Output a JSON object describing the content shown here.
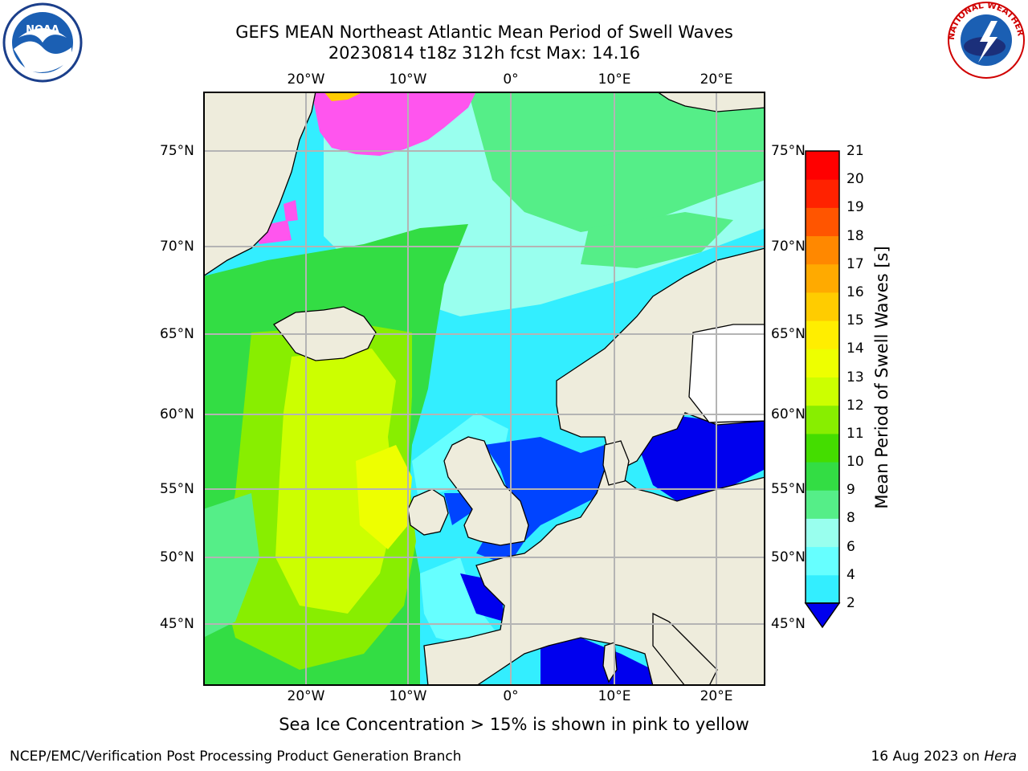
{
  "figure": {
    "title_line1": "GEFS MEAN Northeast Atlantic Mean Period of Swell Waves",
    "title_line2": "20230814 t18z 312h fcst   Max: 14.16",
    "sea_ice_note": "Sea Ice Concentration > 15% is shown in pink to yellow",
    "footer_left": "NCEP/EMC/Verification Post Processing Product Generation Branch",
    "footer_date": "16 Aug 2023 on ",
    "footer_machine": "Hera"
  },
  "map": {
    "lon_ticks": [
      "20°W",
      "10°W",
      "0°",
      "10°E",
      "20°E"
    ],
    "lat_ticks": [
      "75°N",
      "70°N",
      "65°N",
      "60°N",
      "55°N",
      "50°N",
      "45°N"
    ],
    "land_color": "#eeecdc",
    "grid_color": "#b4b4b4",
    "coast_color": "#000000"
  },
  "colorbar": {
    "label": "Mean Period of Swell Waves [s]",
    "ticks": [
      "2",
      "4",
      "6",
      "8",
      "9",
      "10",
      "11",
      "12",
      "13",
      "14",
      "15",
      "16",
      "17",
      "18",
      "19",
      "20",
      "21"
    ],
    "colors": [
      "#0044ff",
      "#00ccff",
      "#33eeff",
      "#66ffff",
      "#99ffee",
      "#55ee88",
      "#33dd44",
      "#44dd00",
      "#88ee00",
      "#ccff00",
      "#eeff00",
      "#ffee00",
      "#ffcc00",
      "#ffaa00",
      "#ff8800",
      "#ff5500",
      "#ff2200",
      "#ff0000"
    ],
    "extend_color": "#0000ee"
  },
  "logos": {
    "noaa_text": "NOAA",
    "nws_text": "NATIONAL WEATHER SERVICE"
  }
}
